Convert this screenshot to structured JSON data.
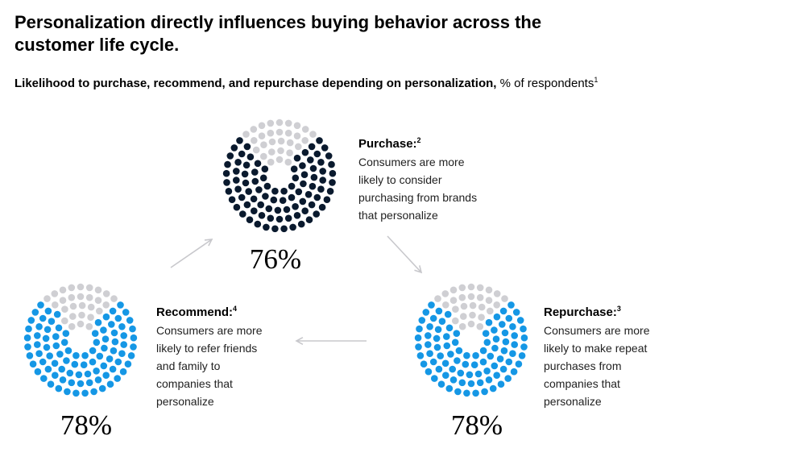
{
  "title": "Personalization directly influences buying behavior across the customer life cycle.",
  "subtitle": {
    "strong": "Likelihood to purchase, recommend, and repurchase depending on personalization,",
    "unit": "% of respondents",
    "note": "1"
  },
  "colors": {
    "navy": "#0a1a2e",
    "blue": "#1597e5",
    "grey": "#cfcfd3",
    "arrow": "#c8c8cc"
  },
  "chart_data": {
    "type": "pie",
    "series": [
      {
        "key": "purchase",
        "label": "Purchase:",
        "note": "2",
        "value": 76,
        "display": "76%",
        "description": "Consumers are more likely to consider purchasing from brands that personalize",
        "desc_lines": [
          "Consumers are more",
          "likely to consider",
          "purchasing from brands",
          "that personalize"
        ],
        "color": "#0a1a2e"
      },
      {
        "key": "recommend",
        "label": "Recommend:",
        "note": "4",
        "value": 78,
        "display": "78%",
        "description": "Consumers are more likely to refer friends and family to companies that personalize",
        "desc_lines": [
          "Consumers are more",
          "likely to refer friends",
          "and family to",
          "companies that",
          "personalize"
        ],
        "color": "#1597e5"
      },
      {
        "key": "repurchase",
        "label": "Repurchase:",
        "note": "3",
        "value": 78,
        "display": "78%",
        "description": "Consumers are more likely to make repeat purchases from companies that personalize",
        "desc_lines": [
          "Consumers are more",
          "likely to make repeat",
          "purchases from",
          "companies that",
          "personalize"
        ],
        "color": "#1597e5"
      }
    ],
    "remainder_color": "#cfcfd3"
  }
}
